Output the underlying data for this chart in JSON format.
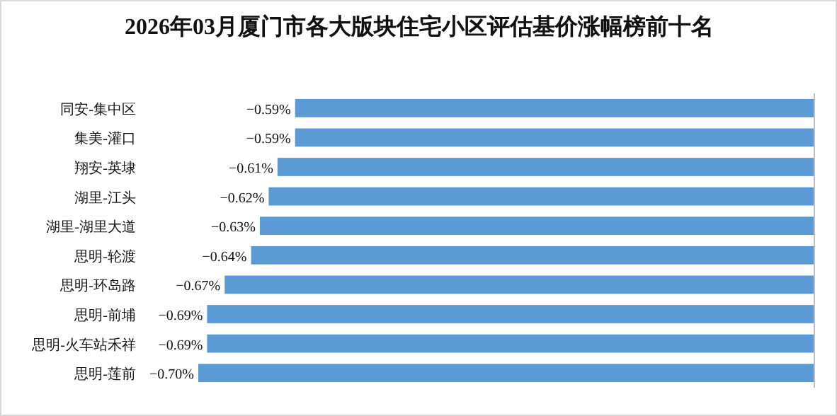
{
  "chart_data": {
    "type": "bar",
    "orientation": "horizontal",
    "title": "2026年03月厦门市各大版块住宅小区评估基价涨幅榜前十名",
    "categories": [
      "同安-集中区",
      "集美-灌口",
      "翔安-英埭",
      "湖里-江头",
      "湖里-湖里大道",
      "思明-轮渡",
      "思明-环岛路",
      "思明-前埔",
      "思明-火车站禾祥",
      "思明-莲前"
    ],
    "values": [
      -0.59,
      -0.59,
      -0.61,
      -0.62,
      -0.63,
      -0.64,
      -0.67,
      -0.69,
      -0.69,
      -0.7
    ],
    "value_labels": [
      "−0.59%",
      "−0.59%",
      "−0.61%",
      "−0.62%",
      "−0.63%",
      "−0.64%",
      "−0.67%",
      "−0.69%",
      "−0.69%",
      "−0.70%"
    ],
    "color": "#5b9bd5",
    "tick_labels": "y"
  }
}
